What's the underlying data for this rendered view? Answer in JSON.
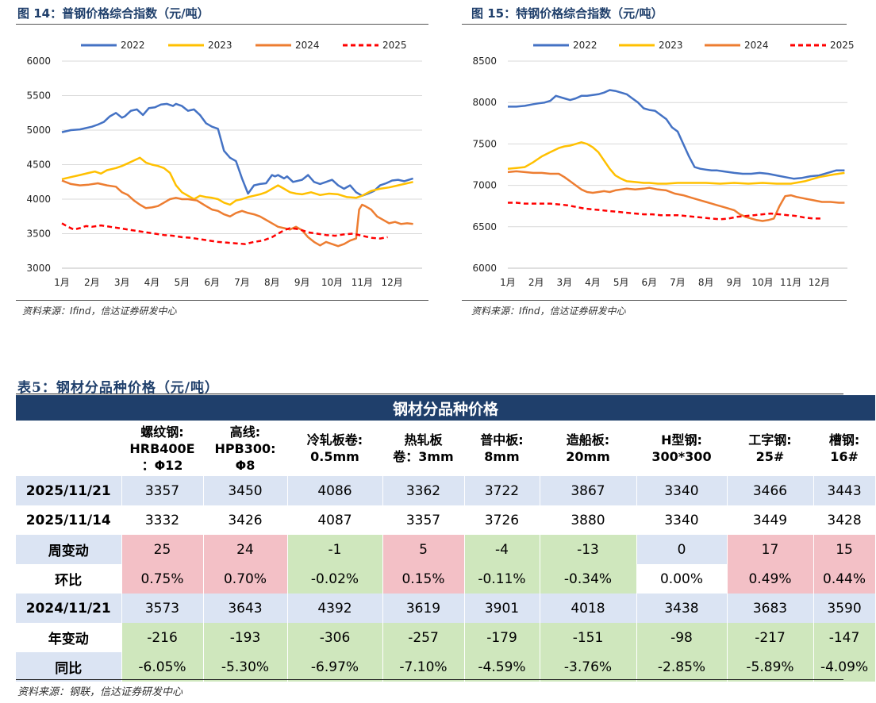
{
  "figures": {
    "fig14": {
      "title": "图 14：普钢价格综合指数（元/吨）",
      "source": "资料来源：Ifind，信达证券研发中心"
    },
    "fig15": {
      "title": "图 15：特钢价格综合指数（元/吨）",
      "source": "资料来源：Ifind，信达证券研发中心"
    }
  },
  "chart_data": [
    {
      "type": "line",
      "title": "普钢价格综合指数（元/吨）",
      "x_ticks": [
        "1月",
        "2月",
        "3月",
        "4月",
        "5月",
        "6月",
        "7月",
        "8月",
        "9月",
        "10月",
        "11月",
        "12月"
      ],
      "ylim": [
        3000,
        6000
      ],
      "y_ticks": [
        3000,
        3500,
        4000,
        4500,
        5000,
        5500,
        6000
      ],
      "legend": [
        "2022",
        "2023",
        "2024",
        "2025"
      ],
      "series": [
        {
          "name": "2022",
          "color": "#4472c4",
          "dashed": false,
          "x": [
            0,
            0.3,
            0.6,
            1,
            1.2,
            1.4,
            1.6,
            1.8,
            2,
            2.1,
            2.3,
            2.5,
            2.7,
            2.9,
            3.1,
            3.3,
            3.5,
            3.7,
            3.8,
            4,
            4.2,
            4.4,
            4.6,
            4.8,
            5,
            5.2,
            5.4,
            5.6,
            5.8,
            6,
            6.2,
            6.4,
            6.6,
            6.8,
            7,
            7.1,
            7.2,
            7.4,
            7.5,
            7.7,
            8,
            8.2,
            8.4,
            8.6,
            8.8,
            9,
            9.2,
            9.4,
            9.6,
            9.8,
            10,
            10.2,
            10.4,
            10.6,
            10.8,
            11,
            11.2,
            11.4,
            11.7
          ],
          "y": [
            4970,
            5000,
            5010,
            5050,
            5080,
            5120,
            5200,
            5250,
            5180,
            5200,
            5280,
            5300,
            5220,
            5320,
            5330,
            5370,
            5380,
            5350,
            5380,
            5350,
            5280,
            5300,
            5220,
            5100,
            5050,
            5020,
            4700,
            4600,
            4550,
            4300,
            4080,
            4200,
            4220,
            4230,
            4350,
            4330,
            4350,
            4300,
            4330,
            4250,
            4280,
            4350,
            4250,
            4220,
            4250,
            4280,
            4200,
            4150,
            4200,
            4100,
            4050,
            4080,
            4120,
            4200,
            4230,
            4270,
            4280,
            4260,
            4300
          ]
        },
        {
          "name": "2023",
          "color": "#ffc000",
          "dashed": false,
          "x": [
            0,
            0.3,
            0.6,
            0.9,
            1.1,
            1.3,
            1.5,
            1.8,
            2,
            2.2,
            2.4,
            2.6,
            2.8,
            3,
            3.2,
            3.4,
            3.6,
            3.8,
            4,
            4.2,
            4.4,
            4.6,
            4.8,
            5,
            5.2,
            5.4,
            5.6,
            5.8,
            6,
            6.2,
            6.4,
            6.6,
            6.8,
            7,
            7.2,
            7.4,
            7.6,
            7.8,
            8,
            8.3,
            8.6,
            8.9,
            9.2,
            9.5,
            9.8,
            10,
            10.3,
            10.6,
            10.9,
            11.2,
            11.5,
            11.7
          ],
          "y": [
            4290,
            4320,
            4350,
            4380,
            4400,
            4370,
            4420,
            4450,
            4480,
            4520,
            4560,
            4600,
            4530,
            4500,
            4480,
            4450,
            4380,
            4200,
            4100,
            4050,
            4000,
            4050,
            4030,
            4020,
            4000,
            3950,
            3920,
            3980,
            4000,
            4030,
            4050,
            4070,
            4100,
            4150,
            4200,
            4150,
            4100,
            4080,
            4070,
            4100,
            4060,
            4080,
            4070,
            4030,
            4020,
            4050,
            4120,
            4150,
            4170,
            4200,
            4230,
            4250
          ]
        },
        {
          "name": "2024",
          "color": "#ed7d31",
          "dashed": false,
          "x": [
            0,
            0.3,
            0.6,
            0.9,
            1.2,
            1.5,
            1.8,
            2,
            2.2,
            2.4,
            2.6,
            2.8,
            3,
            3.2,
            3.4,
            3.6,
            3.8,
            4,
            4.2,
            4.5,
            4.8,
            5,
            5.2,
            5.4,
            5.6,
            5.8,
            6,
            6.2,
            6.4,
            6.6,
            6.8,
            7,
            7.2,
            7.4,
            7.6,
            7.8,
            8,
            8.2,
            8.4,
            8.6,
            8.8,
            9,
            9.2,
            9.4,
            9.6,
            9.8,
            9.9,
            10,
            10.1,
            10.3,
            10.5,
            10.7,
            10.9,
            11.1,
            11.3,
            11.5,
            11.7
          ],
          "y": [
            4270,
            4220,
            4200,
            4210,
            4230,
            4200,
            4180,
            4100,
            4060,
            3980,
            3920,
            3870,
            3880,
            3900,
            3950,
            4000,
            4020,
            4000,
            4000,
            3980,
            3900,
            3850,
            3830,
            3780,
            3750,
            3800,
            3830,
            3800,
            3780,
            3750,
            3700,
            3650,
            3600,
            3580,
            3560,
            3600,
            3550,
            3450,
            3380,
            3330,
            3380,
            3350,
            3320,
            3350,
            3400,
            3430,
            3850,
            3920,
            3900,
            3850,
            3750,
            3700,
            3650,
            3670,
            3640,
            3650,
            3640
          ]
        },
        {
          "name": "2025",
          "color": "#ff0000",
          "dashed": true,
          "x": [
            0,
            0.2,
            0.4,
            0.6,
            0.8,
            1,
            1.3,
            1.6,
            1.9,
            2.2,
            2.5,
            2.8,
            3.1,
            3.4,
            3.7,
            4,
            4.3,
            4.6,
            4.9,
            5.2,
            5.5,
            5.8,
            6.1,
            6.4,
            6.7,
            7,
            7.2,
            7.4,
            7.6,
            7.8,
            8,
            8.2,
            8.5,
            8.8,
            9.1,
            9.4,
            9.7,
            10,
            10.3,
            10.6,
            10.85
          ],
          "y": [
            3650,
            3600,
            3560,
            3580,
            3610,
            3600,
            3620,
            3600,
            3580,
            3560,
            3540,
            3520,
            3500,
            3480,
            3470,
            3450,
            3440,
            3420,
            3400,
            3380,
            3370,
            3360,
            3350,
            3380,
            3400,
            3450,
            3500,
            3550,
            3580,
            3570,
            3550,
            3520,
            3500,
            3480,
            3470,
            3490,
            3500,
            3470,
            3440,
            3430,
            3450
          ]
        }
      ]
    },
    {
      "type": "line",
      "title": "特钢价格综合指数（元/吨）",
      "x_ticks": [
        "1月",
        "2月",
        "3月",
        "4月",
        "5月",
        "6月",
        "7月",
        "8月",
        "9月",
        "10月",
        "11月",
        "12月"
      ],
      "ylim": [
        6000,
        8500
      ],
      "y_ticks": [
        6000,
        6500,
        7000,
        7500,
        8000,
        8500
      ],
      "legend": [
        "2022",
        "2023",
        "2024",
        "2025"
      ],
      "series": [
        {
          "name": "2022",
          "color": "#4472c4",
          "dashed": false,
          "x": [
            0,
            0.3,
            0.6,
            0.9,
            1.1,
            1.3,
            1.5,
            1.7,
            2,
            2.2,
            2.4,
            2.6,
            2.8,
            3,
            3.2,
            3.4,
            3.6,
            3.8,
            4,
            4.2,
            4.4,
            4.6,
            4.8,
            5,
            5.2,
            5.4,
            5.6,
            5.8,
            6,
            6.2,
            6.4,
            6.6,
            6.8,
            7,
            7.2,
            7.4,
            7.6,
            7.8,
            8,
            8.3,
            8.6,
            8.9,
            9.2,
            9.5,
            9.8,
            10.1,
            10.4,
            10.7,
            11,
            11.3,
            11.6,
            11.9
          ],
          "y": [
            7950,
            7950,
            7960,
            7980,
            7990,
            8000,
            8020,
            8080,
            8050,
            8030,
            8050,
            8080,
            8080,
            8090,
            8100,
            8120,
            8150,
            8140,
            8120,
            8100,
            8050,
            8000,
            7930,
            7910,
            7900,
            7850,
            7800,
            7700,
            7650,
            7500,
            7350,
            7220,
            7200,
            7190,
            7180,
            7180,
            7170,
            7160,
            7150,
            7140,
            7140,
            7150,
            7140,
            7120,
            7100,
            7080,
            7090,
            7110,
            7120,
            7150,
            7180,
            7180
          ]
        },
        {
          "name": "2023",
          "color": "#ffc000",
          "dashed": false,
          "x": [
            0,
            0.3,
            0.6,
            0.9,
            1.2,
            1.5,
            1.8,
            2,
            2.2,
            2.4,
            2.6,
            2.8,
            3,
            3.2,
            3.4,
            3.6,
            3.8,
            4,
            4.2,
            4.5,
            4.8,
            5,
            5.3,
            5.6,
            6,
            6.5,
            7,
            7.5,
            8,
            8.5,
            9,
            9.5,
            10,
            10.5,
            11,
            11.5,
            11.9
          ],
          "y": [
            7200,
            7210,
            7220,
            7280,
            7350,
            7400,
            7450,
            7470,
            7480,
            7500,
            7520,
            7500,
            7460,
            7400,
            7300,
            7200,
            7120,
            7080,
            7050,
            7040,
            7030,
            7030,
            7020,
            7020,
            7030,
            7030,
            7030,
            7020,
            7030,
            7020,
            7030,
            7020,
            7020,
            7050,
            7100,
            7130,
            7150
          ]
        },
        {
          "name": "2024",
          "color": "#ed7d31",
          "dashed": false,
          "x": [
            0,
            0.3,
            0.6,
            0.9,
            1.2,
            1.5,
            1.8,
            2,
            2.2,
            2.4,
            2.6,
            2.8,
            3,
            3.2,
            3.4,
            3.6,
            3.8,
            4,
            4.2,
            4.5,
            4.8,
            5,
            5.3,
            5.6,
            5.9,
            6.2,
            6.5,
            6.8,
            7,
            7.2,
            7.4,
            7.6,
            7.8,
            8,
            8.2,
            8.4,
            8.6,
            8.8,
            9,
            9.2,
            9.4,
            9.6,
            9.8,
            10,
            10.2,
            10.5,
            10.8,
            11.1,
            11.4,
            11.7,
            11.9
          ],
          "y": [
            7160,
            7170,
            7160,
            7150,
            7150,
            7140,
            7140,
            7100,
            7050,
            7000,
            6950,
            6920,
            6910,
            6920,
            6930,
            6920,
            6940,
            6950,
            6960,
            6950,
            6960,
            6970,
            6950,
            6940,
            6900,
            6880,
            6850,
            6820,
            6800,
            6780,
            6760,
            6740,
            6720,
            6700,
            6650,
            6620,
            6600,
            6580,
            6570,
            6580,
            6600,
            6750,
            6870,
            6880,
            6860,
            6840,
            6820,
            6800,
            6800,
            6790,
            6790
          ]
        },
        {
          "name": "2025",
          "color": "#ff0000",
          "dashed": true,
          "x": [
            0,
            0.3,
            0.6,
            0.9,
            1.2,
            1.5,
            1.8,
            2.1,
            2.4,
            2.7,
            3,
            3.3,
            3.6,
            3.9,
            4.2,
            4.5,
            4.8,
            5.1,
            5.4,
            5.7,
            6,
            6.3,
            6.6,
            6.9,
            7.2,
            7.5,
            7.8,
            8.1,
            8.4,
            8.7,
            9,
            9.3,
            9.6,
            9.9,
            10.2,
            10.5,
            10.8,
            11.1
          ],
          "y": [
            6790,
            6790,
            6780,
            6780,
            6780,
            6780,
            6770,
            6760,
            6740,
            6720,
            6710,
            6700,
            6690,
            6680,
            6670,
            6660,
            6650,
            6650,
            6640,
            6640,
            6640,
            6630,
            6620,
            6610,
            6600,
            6590,
            6600,
            6620,
            6630,
            6640,
            6650,
            6660,
            6650,
            6640,
            6630,
            6610,
            6600,
            6600
          ]
        }
      ]
    }
  ],
  "table": {
    "title": "表5：钢材分品种价格（元/吨）",
    "header": "钢材分品种价格",
    "columns": [
      "螺纹钢:\nHRB400E\n：Φ12",
      "高线:\nHPB300:\nΦ8",
      "冷轧板卷:\n0.5mm",
      "热轧板\n卷：3mm",
      "普中板:\n8mm",
      "造船板:\n20mm",
      "H型钢:\n300*300",
      "工字钢:\n25#",
      "槽钢:\n16#"
    ],
    "rows": [
      {
        "label": "2025/11/21",
        "style": "blue",
        "values": [
          "3357",
          "3450",
          "4086",
          "3362",
          "3722",
          "3867",
          "3340",
          "3466",
          "3443"
        ],
        "cell_colors": []
      },
      {
        "label": "2025/11/14",
        "style": "white",
        "values": [
          "3332",
          "3426",
          "4087",
          "3357",
          "3726",
          "3880",
          "3340",
          "3449",
          "3428"
        ],
        "cell_colors": []
      },
      {
        "label": "周变动",
        "style": "blue",
        "values": [
          "25",
          "24",
          "-1",
          "5",
          "-4",
          "-13",
          "0",
          "17",
          "15"
        ],
        "cell_colors": [
          "red",
          "red",
          "green",
          "red",
          "green",
          "green",
          "lblue",
          "red",
          "red"
        ]
      },
      {
        "label": "环比",
        "style": "white",
        "values": [
          "0.75%",
          "0.70%",
          "-0.02%",
          "0.15%",
          "-0.11%",
          "-0.34%",
          "0.00%",
          "0.49%",
          "0.44%"
        ],
        "cell_colors": [
          "red",
          "red",
          "green",
          "red",
          "green",
          "green",
          "white",
          "red",
          "red"
        ]
      },
      {
        "label": "2024/11/21",
        "style": "blue",
        "values": [
          "3573",
          "3643",
          "4392",
          "3619",
          "3901",
          "4018",
          "3438",
          "3683",
          "3590"
        ],
        "cell_colors": []
      },
      {
        "label": "年变动",
        "style": "white",
        "values": [
          "-216",
          "-193",
          "-306",
          "-257",
          "-179",
          "-151",
          "-98",
          "-217",
          "-147"
        ],
        "cell_colors": [
          "green",
          "green",
          "green",
          "green",
          "green",
          "green",
          "green",
          "green",
          "green"
        ]
      },
      {
        "label": "同比",
        "style": "blue",
        "values": [
          "-6.05%",
          "-5.30%",
          "-6.97%",
          "-7.10%",
          "-4.59%",
          "-3.76%",
          "-2.85%",
          "-5.89%",
          "-4.09%"
        ],
        "cell_colors": [
          "green",
          "green",
          "green",
          "green",
          "green",
          "green",
          "green",
          "green",
          "green"
        ]
      }
    ],
    "source": "资料来源：钢联，信达证券研发中心"
  }
}
